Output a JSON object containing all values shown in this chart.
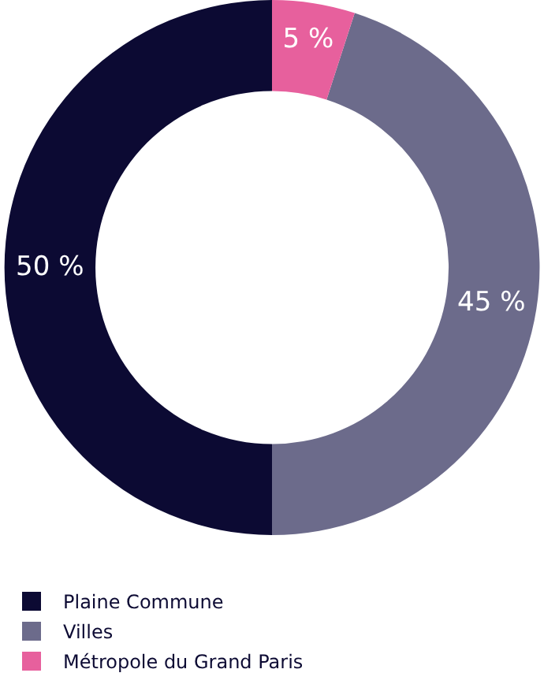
{
  "chart_data": {
    "type": "donut",
    "categories": [
      "Plaine Commune",
      "Villes",
      "Métropole du Grand Paris"
    ],
    "values": [
      50,
      45,
      5
    ],
    "colors": [
      "#0c0a33",
      "#6c6b8b",
      "#e7609d"
    ],
    "value_labels": [
      "50 %",
      "45 %",
      "5 %"
    ],
    "legend": "bottom"
  }
}
